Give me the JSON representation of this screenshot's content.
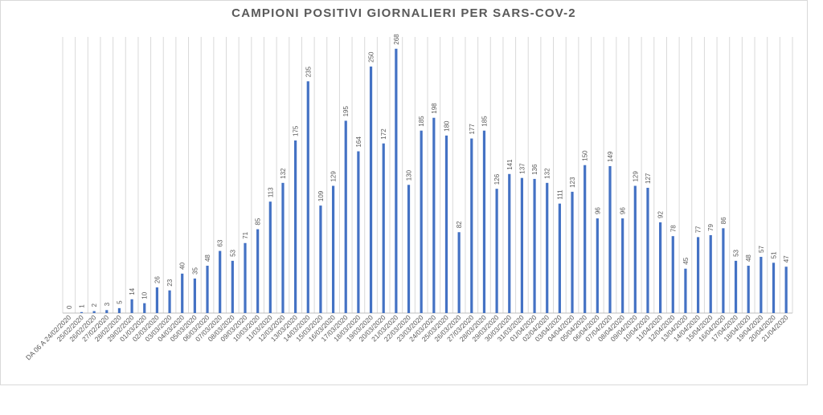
{
  "chart_data": {
    "type": "bar",
    "title": "CAMPIONI POSITIVI GIORNALIERI PER SARS-COV-2",
    "xlabel": "",
    "ylabel": "",
    "grid": "vertical",
    "bar_color": "#4472c4",
    "ylim": [
      0,
      280
    ],
    "categories": [
      "DA 06 A 24/02/2020",
      "25/02/2020",
      "26/02/2020",
      "27/02/2020",
      "28/02/2020",
      "29/02/2020",
      "01/03/2020",
      "02/03/2020",
      "03/03/2020",
      "04/03/2020",
      "05/03/2020",
      "06/03/2020",
      "07/03/2020",
      "08/03/2020",
      "09/03/2020",
      "10/03/2020",
      "11/03/2020",
      "12/03/2020",
      "13/03/2020",
      "14/03/2020",
      "15/03/2020",
      "16/03/2020",
      "17/03/2020",
      "18/03/2020",
      "19/03/2020",
      "20/03/2020",
      "21/03/2020",
      "22/03/2020",
      "23/03/2020",
      "24/03/2020",
      "25/03/2020",
      "26/03/2020",
      "27/03/2020",
      "28/03/2020",
      "29/03/2020",
      "30/03/2020",
      "31/03/2020",
      "01/04/2020",
      "02/04/2020",
      "03/04/2020",
      "04/04/2020",
      "05/04/2020",
      "06/04/2020",
      "07/04/2020",
      "08/04/2020",
      "09/04/2020",
      "10/04/2020",
      "11/04/2020",
      "12/04/2020",
      "13/04/2020",
      "14/04/2020",
      "15/04/2020",
      "16/04/2020",
      "17/04/2020",
      "18/04/2020",
      "19/04/2020",
      "20/04/2020",
      "21/04/2020"
    ],
    "values": [
      0,
      1,
      2,
      3,
      5,
      14,
      10,
      26,
      23,
      40,
      35,
      48,
      63,
      53,
      71,
      85,
      113,
      132,
      175,
      235,
      109,
      129,
      195,
      164,
      250,
      172,
      268,
      130,
      185,
      198,
      180,
      82,
      177,
      185,
      126,
      141,
      137,
      136,
      132,
      111,
      123,
      150,
      96,
      149,
      96,
      129,
      127,
      92,
      78,
      45,
      77,
      79,
      86,
      53,
      48,
      57,
      51,
      47
    ]
  }
}
